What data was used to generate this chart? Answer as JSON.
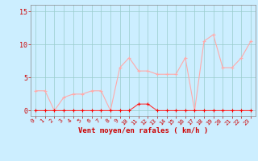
{
  "x": [
    0,
    1,
    2,
    3,
    4,
    5,
    6,
    7,
    8,
    9,
    10,
    11,
    12,
    13,
    14,
    15,
    16,
    17,
    18,
    19,
    20,
    21,
    22,
    23
  ],
  "wind_avg": [
    0,
    0,
    0,
    0,
    0,
    0,
    0,
    0,
    0,
    0,
    0,
    1,
    1,
    0,
    0,
    0,
    0,
    0,
    0,
    0,
    0,
    0,
    0,
    0
  ],
  "wind_gust": [
    3,
    3,
    0,
    2,
    2.5,
    2.5,
    3,
    3,
    0,
    6.5,
    8,
    6,
    6,
    5.5,
    5.5,
    5.5,
    8,
    0,
    10.5,
    11.5,
    6.5,
    6.5,
    8,
    10.5
  ],
  "xlabel": "Vent moyen/en rafales ( km/h )",
  "yticks": [
    0,
    5,
    10,
    15
  ],
  "xlim": [
    -0.5,
    23.5
  ],
  "ylim": [
    -0.8,
    16
  ],
  "background_color": "#cceeff",
  "grid_color": "#99cccc",
  "line_avg_color": "#ff3333",
  "line_gust_color": "#ffaaaa",
  "marker_avg_color": "#ff0000",
  "marker_gust_color": "#ffaaaa",
  "xlabel_color": "#cc0000",
  "tick_color": "#cc0000",
  "spine_color": "#888888"
}
